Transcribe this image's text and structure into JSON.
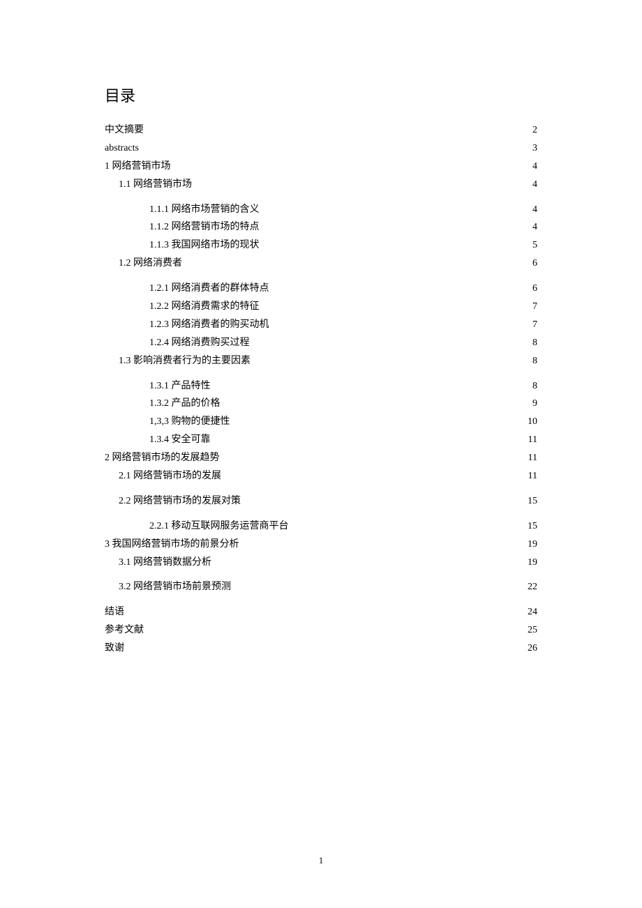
{
  "title": "目录",
  "page_number": "1",
  "entries": [
    {
      "label": "中文摘要",
      "page": "2",
      "level": 0
    },
    {
      "label": "abstracts",
      "page": "3",
      "level": 0
    },
    {
      "label": "1 网络营销市场",
      "page": "4",
      "level": 0
    },
    {
      "label": "1.1  网络营销市场",
      "page": "4",
      "level": 1,
      "gapAfter": true
    },
    {
      "label": "1.1.1 网络市场营销的含义",
      "page": "4",
      "level": 2
    },
    {
      "label": "1.1.2 网络营销市场的特点",
      "page": "4",
      "level": 2
    },
    {
      "label": "1.1.3 我国网络市场的现状",
      "page": "5",
      "level": 2
    },
    {
      "label": "1.2  网络消费者",
      "page": "6",
      "level": 1,
      "gapAfter": true
    },
    {
      "label": "1.2.1 网络消费者的群体特点",
      "page": "6",
      "level": 2
    },
    {
      "label": "1.2.2 网络消费需求的特征",
      "page": "7",
      "level": 2
    },
    {
      "label": "1.2.3 网络消费者的购买动机",
      "page": "7",
      "level": 2
    },
    {
      "label": "1.2.4 网络消费购买过程",
      "page": "8",
      "level": 2
    },
    {
      "label": "1.3  影响消费者行为的主要因素",
      "page": "8",
      "level": 1,
      "gapAfter": true
    },
    {
      "label": "1.3.1 产品特性",
      "page": "8",
      "level": 2
    },
    {
      "label": "1.3.2 产品的价格",
      "page": "9",
      "level": 2
    },
    {
      "label": "1,3,3 购物的便捷性",
      "page": "10",
      "level": 2
    },
    {
      "label": "1.3.4 安全可靠",
      "page": "11",
      "level": 2
    },
    {
      "label": "2 网络营销市场的发展趋势",
      "page": "11",
      "level": 0
    },
    {
      "label": "2.1 网络营销市场的发展",
      "page": "11",
      "level": 1,
      "gapAfter": true
    },
    {
      "label": "2.2 网络营销市场的发展对策",
      "page": "15",
      "level": 1,
      "gapAfter": true
    },
    {
      "label": "2.2.1 移动互联网服务运营商平台",
      "page": "15",
      "level": 2
    },
    {
      "label": "3 我国网络营销市场的前景分析",
      "page": "19",
      "level": 0
    },
    {
      "label": "3.1 网络营销数据分析",
      "page": "19",
      "level": 1,
      "gapAfter": true
    },
    {
      "label": "3.2 网络营销市场前景预测",
      "page": "22",
      "level": 1,
      "gapAfter": true
    },
    {
      "label": "结语",
      "page": "24",
      "level": 0
    },
    {
      "label": "参考文献",
      "page": "25",
      "level": 0
    },
    {
      "label": "致谢",
      "page": "26",
      "level": 0
    }
  ]
}
